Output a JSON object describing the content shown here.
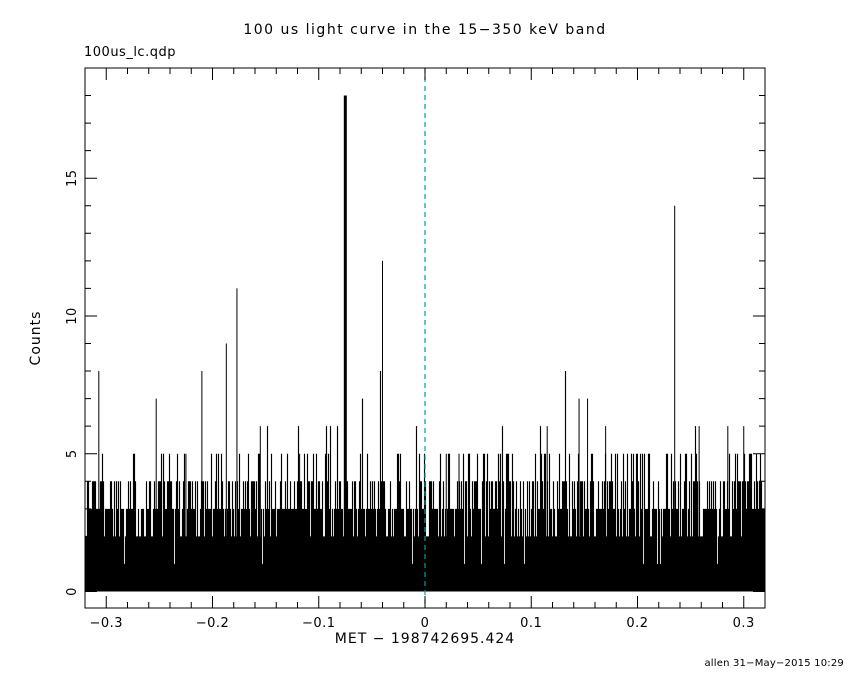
{
  "file_label": "100us_lc.qdp",
  "credit": "allen 31−May−2015 10:29",
  "chart_data": {
    "type": "histogram",
    "title": "100 us light curve in the 15−350 keV band",
    "xlabel": "MET − 198742695.424",
    "ylabel": "Counts",
    "xlim": [
      -0.32,
      0.32
    ],
    "ylim": [
      -0.6,
      19.0
    ],
    "x_ticks": [
      -0.3,
      -0.2,
      -0.1,
      0,
      0.1,
      0.2,
      0.3
    ],
    "x_tick_labels": [
      "−0.3",
      "−0.2",
      "−0.1",
      "0",
      "0.1",
      "0.2",
      "0.3"
    ],
    "x_minor_step": 0.02,
    "y_ticks": [
      0,
      5,
      10,
      15
    ],
    "y_tick_labels": [
      "0",
      "5",
      "10",
      "15"
    ],
    "y_minor_step": 1,
    "grid": false,
    "legend": false,
    "colors": {
      "data": "#000000",
      "frame": "#000000",
      "marker": "#009e9e",
      "background": "#ffffff"
    },
    "marker_line": {
      "x": 0,
      "style": "dashed"
    },
    "noise_model": {
      "seed": 1337,
      "columns": 680,
      "levels": [
        1,
        2,
        3,
        4,
        5,
        6,
        7,
        8
      ],
      "probabilities": [
        0.02,
        0.17,
        0.35,
        0.3,
        0.133,
        0.02,
        0.006,
        0.001
      ]
    },
    "notable_spikes": [
      {
        "x": -0.307,
        "y": 8,
        "w": 1
      },
      {
        "x": -0.253,
        "y": 7,
        "w": 1
      },
      {
        "x": -0.225,
        "y": 5,
        "w": 1
      },
      {
        "x": -0.21,
        "y": 8,
        "w": 1
      },
      {
        "x": -0.187,
        "y": 9,
        "w": 1
      },
      {
        "x": -0.177,
        "y": 11,
        "w": 1
      },
      {
        "x": -0.155,
        "y": 6,
        "w": 1
      },
      {
        "x": -0.118,
        "y": 5,
        "w": 1
      },
      {
        "x": -0.075,
        "y": 18,
        "w": 3
      },
      {
        "x": -0.04,
        "y": 12,
        "w": 1
      },
      {
        "x": 0.02,
        "y": 5,
        "w": 1
      },
      {
        "x": 0.032,
        "y": 5,
        "w": 1
      },
      {
        "x": 0.115,
        "y": 6,
        "w": 1
      },
      {
        "x": 0.145,
        "y": 7,
        "w": 1
      },
      {
        "x": 0.153,
        "y": 7,
        "w": 1
      },
      {
        "x": 0.17,
        "y": 6,
        "w": 1
      },
      {
        "x": 0.2,
        "y": 5,
        "w": 1
      },
      {
        "x": 0.235,
        "y": 14,
        "w": 1
      },
      {
        "x": 0.258,
        "y": 6,
        "w": 1
      },
      {
        "x": 0.285,
        "y": 6,
        "w": 1
      },
      {
        "x": 0.3,
        "y": 6,
        "w": 1
      }
    ]
  }
}
